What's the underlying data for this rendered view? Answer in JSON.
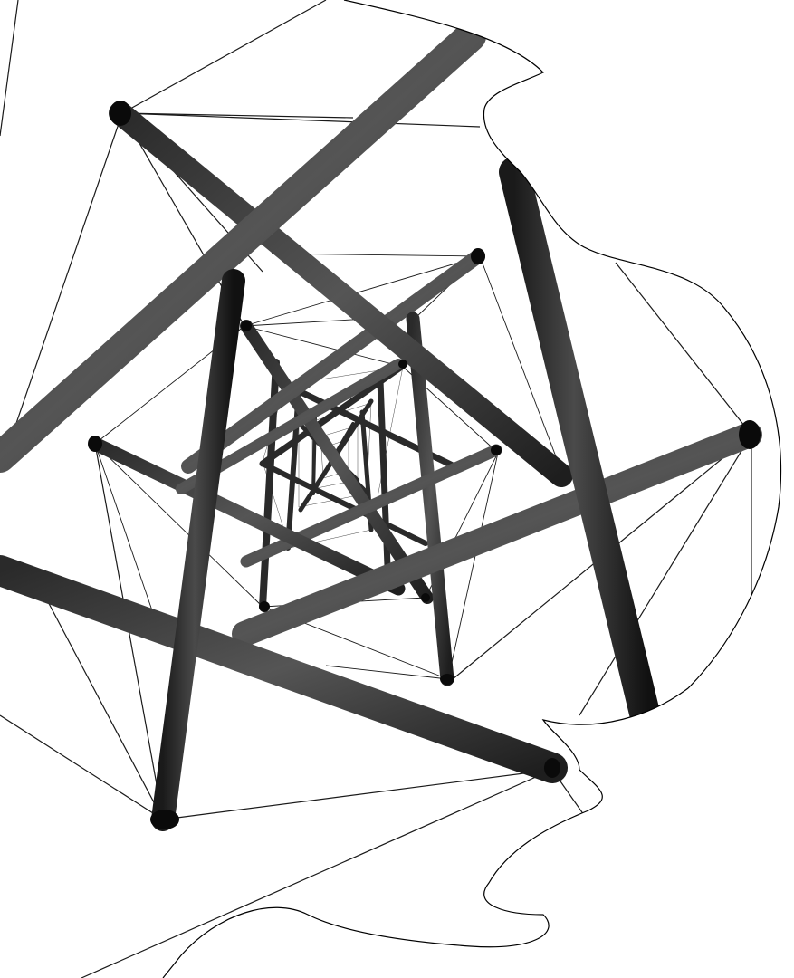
{
  "image": {
    "subject": "tensegrity-tower-viewed-from-below",
    "palette": {
      "background": "#ffffff",
      "rod_dark": "#111111",
      "rod_mid": "#3a3a3a",
      "rod_light": "#6a6a6a",
      "cable": "#1a1a1a",
      "outline": "#000000"
    }
  }
}
